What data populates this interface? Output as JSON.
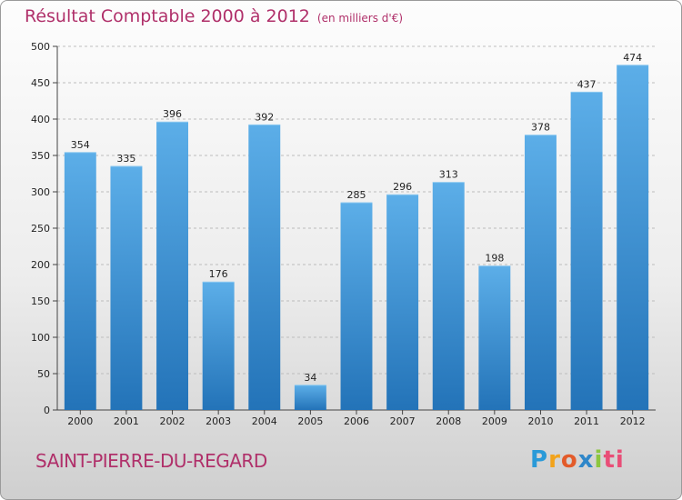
{
  "chart_data": {
    "type": "bar",
    "title": "Résultat Comptable 2000 à 2012",
    "subtitle": "(en milliers d'€)",
    "categories": [
      "2000",
      "2001",
      "2002",
      "2003",
      "2004",
      "2005",
      "2006",
      "2007",
      "2008",
      "2009",
      "2010",
      "2011",
      "2012"
    ],
    "values": [
      354,
      335,
      396,
      176,
      392,
      34,
      285,
      296,
      313,
      198,
      378,
      437,
      474
    ],
    "ylim": [
      0,
      500
    ],
    "yticks": [
      0,
      50,
      100,
      150,
      200,
      250,
      300,
      350,
      400,
      450,
      500
    ],
    "grid": true,
    "bar_color": "#3d94d6"
  },
  "commune": "SAINT-PIERRE-DU-REGARD",
  "logo": {
    "letters": [
      "P",
      "r",
      "o",
      "x",
      "i",
      "ti"
    ]
  }
}
